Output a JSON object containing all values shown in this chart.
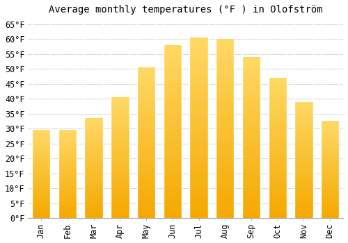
{
  "title": "Average monthly temperatures (°F ) in Olofström",
  "months": [
    "Jan",
    "Feb",
    "Mar",
    "Apr",
    "May",
    "Jun",
    "Jul",
    "Aug",
    "Sep",
    "Oct",
    "Nov",
    "Dec"
  ],
  "values": [
    29.5,
    29.5,
    33.5,
    40.5,
    50.5,
    58.0,
    60.5,
    60.0,
    54.0,
    47.0,
    39.0,
    32.5
  ],
  "bar_color_bottom": "#F5A800",
  "bar_color_top": "#FFD966",
  "bar_edge_color": "#E8E8E8",
  "background_color": "#FFFFFF",
  "grid_color": "#DDDDDD",
  "ylim": [
    0,
    67
  ],
  "yticks": [
    0,
    5,
    10,
    15,
    20,
    25,
    30,
    35,
    40,
    45,
    50,
    55,
    60,
    65
  ],
  "title_fontsize": 10,
  "tick_fontsize": 8.5,
  "font_family": "monospace"
}
